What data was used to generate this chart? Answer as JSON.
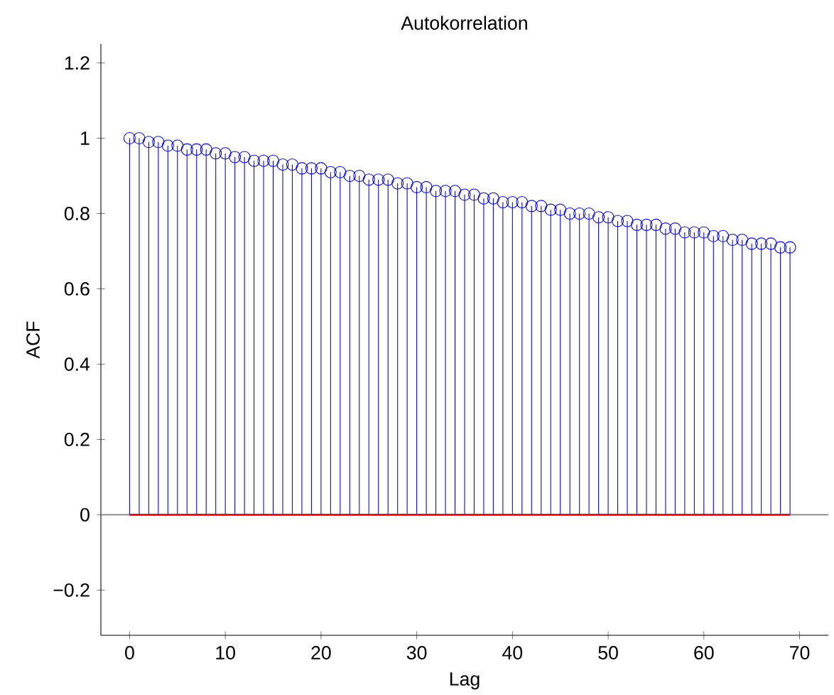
{
  "chart_data": {
    "type": "lollipop",
    "title": "Autokorrelation",
    "xlabel": "Lag",
    "ylabel": "ACF",
    "x": [
      0,
      1,
      2,
      3,
      4,
      5,
      6,
      7,
      8,
      9,
      10,
      11,
      12,
      13,
      14,
      15,
      16,
      17,
      18,
      19,
      20,
      21,
      22,
      23,
      24,
      25,
      26,
      27,
      28,
      29,
      30,
      31,
      32,
      33,
      34,
      35,
      36,
      37,
      38,
      39,
      40,
      41,
      42,
      43,
      44,
      45,
      46,
      47,
      48,
      49,
      50,
      51,
      52,
      53,
      54,
      55,
      56,
      57,
      58,
      59,
      60,
      61,
      62,
      63,
      64,
      65,
      66,
      67,
      68,
      69
    ],
    "series": [
      {
        "color": "#0000ff",
        "marker": "circle",
        "values": [
          1.0,
          1.0,
          0.99,
          0.99,
          0.98,
          0.98,
          0.97,
          0.97,
          0.97,
          0.96,
          0.96,
          0.95,
          0.95,
          0.94,
          0.94,
          0.94,
          0.93,
          0.93,
          0.92,
          0.92,
          0.92,
          0.91,
          0.91,
          0.9,
          0.9,
          0.89,
          0.89,
          0.89,
          0.88,
          0.88,
          0.87,
          0.87,
          0.86,
          0.86,
          0.86,
          0.85,
          0.85,
          0.84,
          0.84,
          0.83,
          0.83,
          0.83,
          0.82,
          0.82,
          0.81,
          0.81,
          0.8,
          0.8,
          0.8,
          0.79,
          0.79,
          0.78,
          0.78,
          0.77,
          0.77,
          0.77,
          0.76,
          0.76,
          0.75,
          0.75,
          0.75,
          0.74,
          0.74,
          0.73,
          0.73,
          0.72,
          0.72,
          0.72,
          0.71,
          0.71
        ]
      },
      {
        "type": "line",
        "color": "#ff0000",
        "x": [
          0,
          69
        ],
        "values": [
          0,
          0
        ]
      }
    ],
    "ref_lines": [
      {
        "axis": "y",
        "value": 0,
        "color": "#808080"
      }
    ],
    "xlim": [
      -3,
      73
    ],
    "ylim": [
      -0.32,
      1.25
    ],
    "xticks": [
      0,
      10,
      20,
      30,
      40,
      50,
      60,
      70
    ],
    "yticks": [
      {
        "value": -0.2,
        "label": "−0.2"
      },
      0,
      0.2,
      0.4,
      0.6,
      0.8,
      1,
      1.2
    ]
  }
}
